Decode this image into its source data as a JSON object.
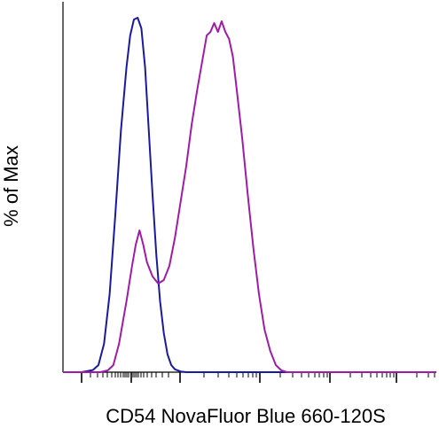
{
  "chart_data": {
    "type": "line",
    "xlabel": "CD54 NovaFluor Blue 660-120S",
    "ylabel": "% of Max",
    "x_scale": "log-like (biexponential)",
    "x_tick_labels": [],
    "y_tick_labels": [],
    "grid": false,
    "legend": "none",
    "ylim": [
      0,
      100
    ],
    "series": [
      {
        "color": "#1a1a9e",
        "points": [
          [
            0.0,
            0
          ],
          [
            0.05,
            0
          ],
          [
            0.08,
            0.6
          ],
          [
            0.095,
            2
          ],
          [
            0.11,
            8
          ],
          [
            0.125,
            22
          ],
          [
            0.14,
            44
          ],
          [
            0.155,
            68
          ],
          [
            0.17,
            86
          ],
          [
            0.18,
            95
          ],
          [
            0.19,
            99.5
          ],
          [
            0.2,
            100
          ],
          [
            0.21,
            97
          ],
          [
            0.22,
            86
          ],
          [
            0.23,
            68
          ],
          [
            0.24,
            50
          ],
          [
            0.25,
            33
          ],
          [
            0.26,
            20
          ],
          [
            0.27,
            11
          ],
          [
            0.28,
            5
          ],
          [
            0.29,
            2
          ],
          [
            0.3,
            0.8
          ],
          [
            0.315,
            0.2
          ],
          [
            0.33,
            0
          ],
          [
            1.0,
            0
          ]
        ]
      },
      {
        "color": "#a01ca8",
        "points": [
          [
            0.0,
            0
          ],
          [
            0.1,
            0
          ],
          [
            0.12,
            0.5
          ],
          [
            0.135,
            2
          ],
          [
            0.15,
            8
          ],
          [
            0.17,
            20
          ],
          [
            0.185,
            30
          ],
          [
            0.195,
            36
          ],
          [
            0.205,
            40
          ],
          [
            0.215,
            36
          ],
          [
            0.225,
            31
          ],
          [
            0.24,
            27
          ],
          [
            0.255,
            25
          ],
          [
            0.27,
            26
          ],
          [
            0.285,
            30
          ],
          [
            0.3,
            38
          ],
          [
            0.315,
            48
          ],
          [
            0.33,
            58
          ],
          [
            0.345,
            70
          ],
          [
            0.36,
            80
          ],
          [
            0.375,
            89
          ],
          [
            0.385,
            95
          ],
          [
            0.395,
            96
          ],
          [
            0.405,
            98.5
          ],
          [
            0.415,
            96
          ],
          [
            0.425,
            99
          ],
          [
            0.435,
            96
          ],
          [
            0.445,
            94
          ],
          [
            0.455,
            89
          ],
          [
            0.465,
            80
          ],
          [
            0.48,
            66
          ],
          [
            0.495,
            50
          ],
          [
            0.51,
            35
          ],
          [
            0.525,
            22
          ],
          [
            0.54,
            12
          ],
          [
            0.555,
            6
          ],
          [
            0.57,
            2
          ],
          [
            0.585,
            0.5
          ],
          [
            0.6,
            0
          ],
          [
            1.0,
            0
          ]
        ]
      }
    ]
  }
}
